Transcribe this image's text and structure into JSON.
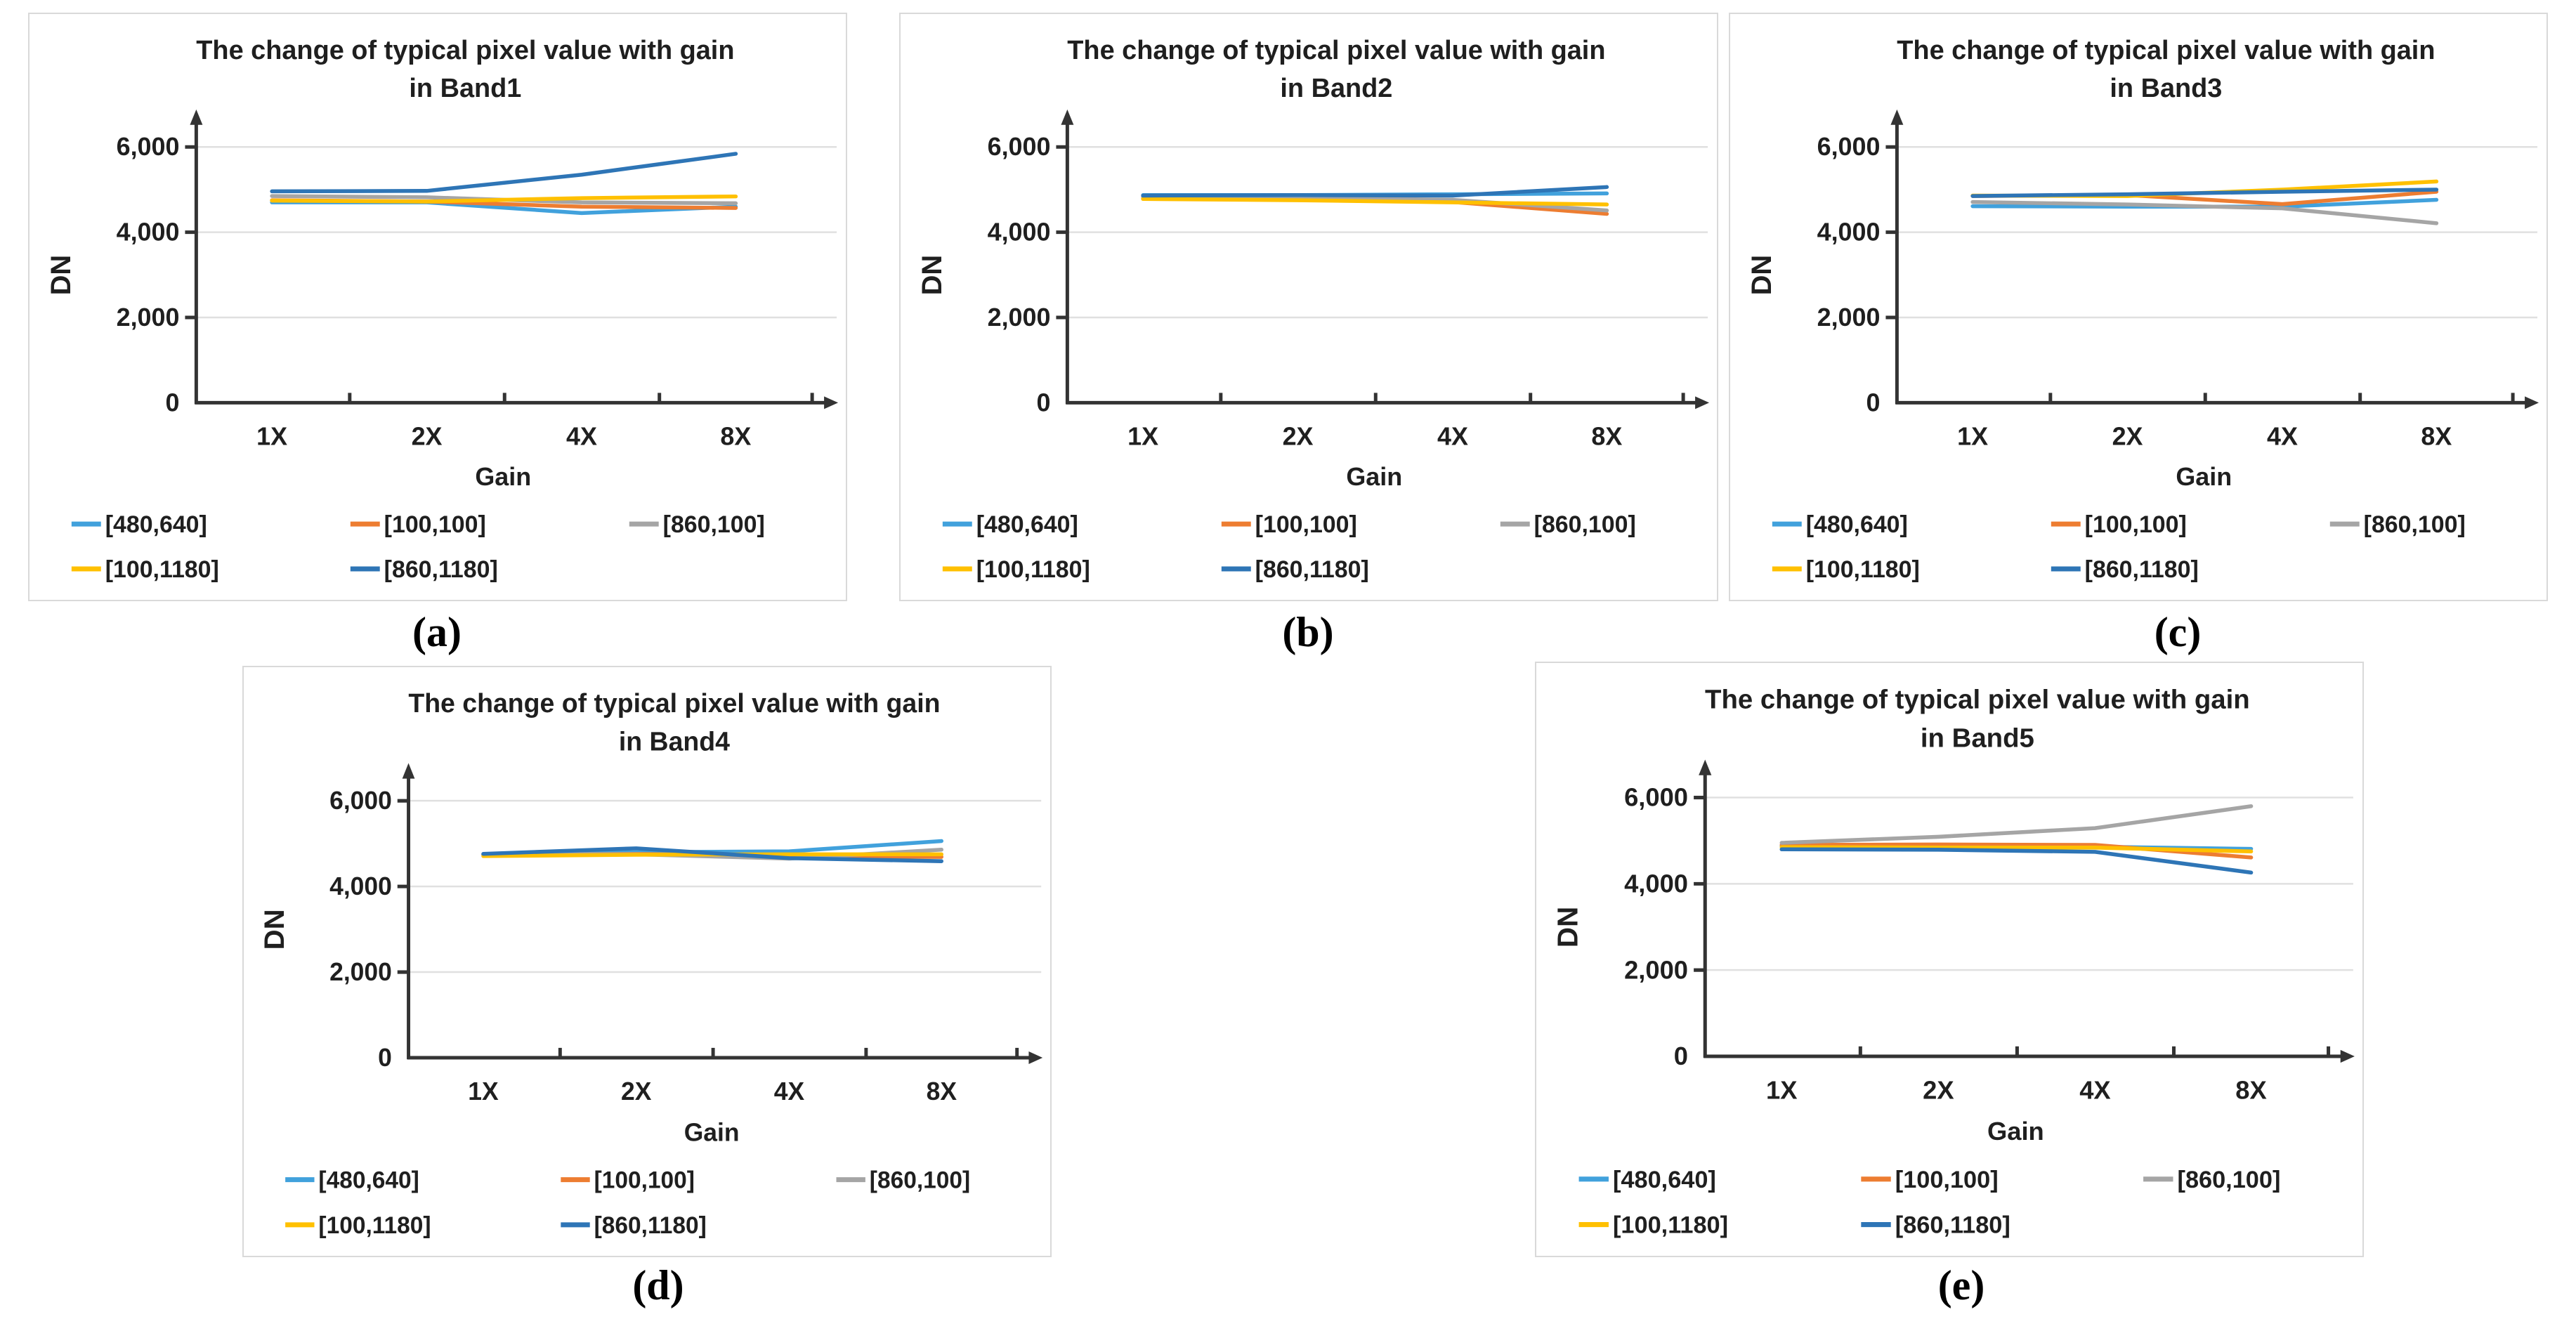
{
  "figure": {
    "background": "#ffffff",
    "axis_color": "#333333",
    "gridline_color": "#e0e0e0",
    "text_color": "#1f1f1f"
  },
  "legend": {
    "position": "bottom",
    "items": [
      {
        "label": "[480,640]",
        "color": "#41A1DC"
      },
      {
        "label": "[100,100]",
        "color": "#ED7D31"
      },
      {
        "label": "[860,100]",
        "color": "#A5A5A5"
      },
      {
        "label": "[100,1180]",
        "color": "#FFC000"
      },
      {
        "label": "[860,1180]",
        "color": "#2E75B6"
      }
    ]
  },
  "chart_data": [
    {
      "type": "line",
      "panel": "a",
      "caption": "(a)",
      "title": "The change of typical pixel value with gain in Band1",
      "title_lines": [
        "The change of typical pixel value with gain",
        "in Band1"
      ],
      "xlabel": "Gain",
      "ylabel": "DN",
      "categories": [
        "1X",
        "2X",
        "4X",
        "8X"
      ],
      "y_ticks": [
        {
          "value": 0,
          "label": "0"
        },
        {
          "value": 2000,
          "label": "2,000"
        },
        {
          "value": 4000,
          "label": "4,000"
        },
        {
          "value": 6000,
          "label": "6,000"
        }
      ],
      "ylim": [
        0,
        6800
      ],
      "grid": "horizontal",
      "legend_position": "bottom",
      "series": [
        {
          "name": "[480,640]",
          "color": "#41A1DC",
          "values": [
            4700,
            4700,
            4450,
            4600
          ]
        },
        {
          "name": "[100,100]",
          "color": "#ED7D31",
          "values": [
            4750,
            4720,
            4600,
            4570
          ]
        },
        {
          "name": "[860,100]",
          "color": "#A5A5A5",
          "values": [
            4850,
            4820,
            4700,
            4680
          ]
        },
        {
          "name": "[100,1180]",
          "color": "#FFC000",
          "values": [
            4740,
            4720,
            4800,
            4840
          ]
        },
        {
          "name": "[860,1180]",
          "color": "#2E75B6",
          "values": [
            4960,
            4970,
            5350,
            5840
          ]
        }
      ]
    },
    {
      "type": "line",
      "panel": "b",
      "caption": "(b)",
      "title": "The change of typical pixel value with gain in Band2",
      "title_lines": [
        "The change of typical pixel value with gain",
        "in Band2"
      ],
      "xlabel": "Gain",
      "ylabel": "DN",
      "categories": [
        "1X",
        "2X",
        "4X",
        "8X"
      ],
      "y_ticks": [
        {
          "value": 0,
          "label": "0"
        },
        {
          "value": 2000,
          "label": "2,000"
        },
        {
          "value": 4000,
          "label": "4,000"
        },
        {
          "value": 6000,
          "label": "6,000"
        }
      ],
      "ylim": [
        0,
        6800
      ],
      "grid": "horizontal",
      "legend_position": "bottom",
      "series": [
        {
          "name": "[480,640]",
          "color": "#41A1DC",
          "values": [
            4870,
            4870,
            4890,
            4910
          ]
        },
        {
          "name": "[100,100]",
          "color": "#ED7D31",
          "values": [
            4790,
            4760,
            4710,
            4430
          ]
        },
        {
          "name": "[860,100]",
          "color": "#A5A5A5",
          "values": [
            4840,
            4810,
            4760,
            4510
          ]
        },
        {
          "name": "[100,1180]",
          "color": "#FFC000",
          "values": [
            4780,
            4750,
            4700,
            4650
          ]
        },
        {
          "name": "[860,1180]",
          "color": "#2E75B6",
          "values": [
            4860,
            4870,
            4860,
            5060
          ]
        }
      ]
    },
    {
      "type": "line",
      "panel": "c",
      "caption": "(c)",
      "title": "The change of typical pixel value with gain in Band3",
      "title_lines": [
        "The change of typical pixel value with gain",
        "in Band3"
      ],
      "xlabel": "Gain",
      "ylabel": "DN",
      "categories": [
        "1X",
        "2X",
        "4X",
        "8X"
      ],
      "y_ticks": [
        {
          "value": 0,
          "label": "0"
        },
        {
          "value": 2000,
          "label": "2,000"
        },
        {
          "value": 4000,
          "label": "4,000"
        },
        {
          "value": 6000,
          "label": "6,000"
        }
      ],
      "ylim": [
        0,
        6800
      ],
      "grid": "horizontal",
      "legend_position": "bottom",
      "series": [
        {
          "name": "[480,640]",
          "color": "#41A1DC",
          "values": [
            4610,
            4600,
            4600,
            4760
          ]
        },
        {
          "name": "[100,100]",
          "color": "#ED7D31",
          "values": [
            4850,
            4870,
            4660,
            4950
          ]
        },
        {
          "name": "[860,100]",
          "color": "#A5A5A5",
          "values": [
            4710,
            4650,
            4560,
            4210
          ]
        },
        {
          "name": "[100,1180]",
          "color": "#FFC000",
          "values": [
            4860,
            4850,
            5000,
            5190
          ]
        },
        {
          "name": "[860,1180]",
          "color": "#2E75B6",
          "values": [
            4850,
            4890,
            4950,
            5000
          ]
        }
      ]
    },
    {
      "type": "line",
      "panel": "d",
      "caption": "(d)",
      "title": "The change of typical pixel value with gain in Band4",
      "title_lines": [
        "The change of typical pixel value with gain",
        "in Band4"
      ],
      "xlabel": "Gain",
      "ylabel": "DN",
      "categories": [
        "1X",
        "2X",
        "4X",
        "8X"
      ],
      "y_ticks": [
        {
          "value": 0,
          "label": "0"
        },
        {
          "value": 2000,
          "label": "2,000"
        },
        {
          "value": 4000,
          "label": "4,000"
        },
        {
          "value": 6000,
          "label": "6,000"
        }
      ],
      "ylim": [
        0,
        6800
      ],
      "grid": "horizontal",
      "legend_position": "bottom",
      "series": [
        {
          "name": "[480,640]",
          "color": "#41A1DC",
          "values": [
            4740,
            4800,
            4820,
            5060
          ]
        },
        {
          "name": "[100,100]",
          "color": "#ED7D31",
          "values": [
            4740,
            4760,
            4700,
            4690
          ]
        },
        {
          "name": "[860,100]",
          "color": "#A5A5A5",
          "values": [
            4750,
            4750,
            4650,
            4860
          ]
        },
        {
          "name": "[100,1180]",
          "color": "#FFC000",
          "values": [
            4710,
            4740,
            4750,
            4750
          ]
        },
        {
          "name": "[860,1180]",
          "color": "#2E75B6",
          "values": [
            4760,
            4890,
            4660,
            4590
          ]
        }
      ]
    },
    {
      "type": "line",
      "panel": "e",
      "caption": "(e)",
      "title": "The change of typical pixel value with gain in Band5",
      "title_lines": [
        "The change of typical pixel value with gain",
        "in Band5"
      ],
      "xlabel": "Gain",
      "ylabel": "DN",
      "categories": [
        "1X",
        "2X",
        "4X",
        "8X"
      ],
      "y_ticks": [
        {
          "value": 0,
          "label": "0"
        },
        {
          "value": 2000,
          "label": "2,000"
        },
        {
          "value": 4000,
          "label": "4,000"
        },
        {
          "value": 6000,
          "label": "6,000"
        }
      ],
      "ylim": [
        0,
        6800
      ],
      "grid": "horizontal",
      "legend_position": "bottom",
      "series": [
        {
          "name": "[480,640]",
          "color": "#41A1DC",
          "values": [
            4870,
            4860,
            4860,
            4810
          ]
        },
        {
          "name": "[100,100]",
          "color": "#ED7D31",
          "values": [
            4900,
            4910,
            4900,
            4610
          ]
        },
        {
          "name": "[860,100]",
          "color": "#A5A5A5",
          "values": [
            4950,
            5090,
            5290,
            5800
          ]
        },
        {
          "name": "[100,1180]",
          "color": "#FFC000",
          "values": [
            4850,
            4840,
            4840,
            4750
          ]
        },
        {
          "name": "[860,1180]",
          "color": "#2E75B6",
          "values": [
            4800,
            4790,
            4740,
            4260
          ]
        }
      ]
    }
  ]
}
